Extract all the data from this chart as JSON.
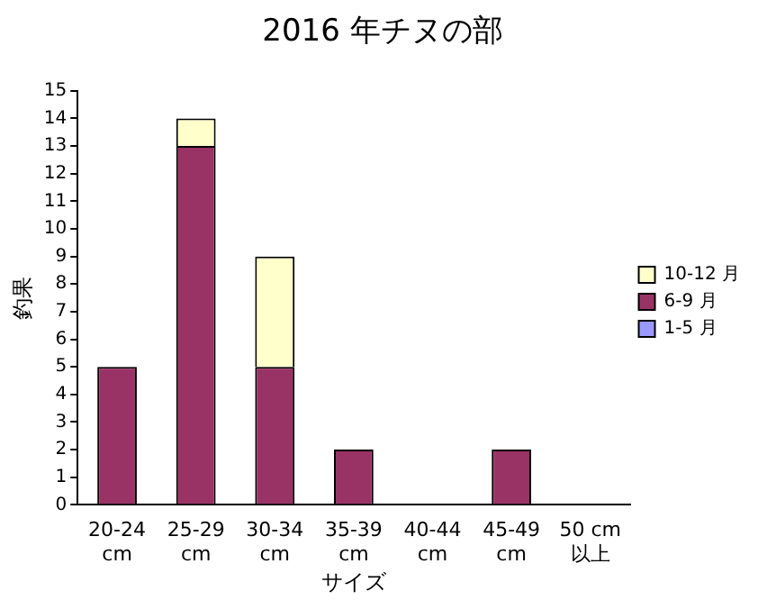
{
  "chart_data": {
    "type": "bar",
    "title": "2016 年チヌの部",
    "xlabel": "サイズ",
    "ylabel": "釣果",
    "categories": [
      "20-24\ncm",
      "25-29\ncm",
      "30-34\ncm",
      "35-39\ncm",
      "40-44\ncm",
      "45-49\ncm",
      "50 cm\n以上"
    ],
    "series": [
      {
        "name": "1-5 月",
        "color": "#9999ff",
        "values": [
          0,
          0,
          0,
          0,
          0,
          0,
          0
        ]
      },
      {
        "name": "6-9 月",
        "color": "#993366",
        "values": [
          5,
          13,
          5,
          2,
          0,
          2,
          0
        ]
      },
      {
        "name": "10-12 月",
        "color": "#ffffcc",
        "values": [
          0,
          1,
          4,
          0,
          0,
          0,
          0
        ]
      }
    ],
    "stacked": true,
    "ylim": [
      0,
      15
    ],
    "yticks": [
      0,
      1,
      2,
      3,
      4,
      5,
      6,
      7,
      8,
      9,
      10,
      11,
      12,
      13,
      14,
      15
    ],
    "grid": false,
    "legend": "right"
  }
}
